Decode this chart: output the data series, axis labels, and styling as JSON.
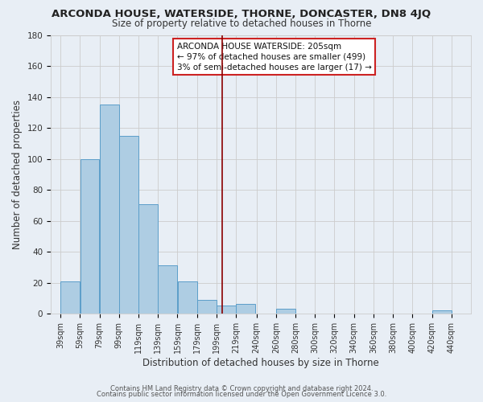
{
  "title": "ARCONDA HOUSE, WATERSIDE, THORNE, DONCASTER, DN8 4JQ",
  "subtitle": "Size of property relative to detached houses in Thorne",
  "xlabel": "Distribution of detached houses by size in Thorne",
  "ylabel": "Number of detached properties",
  "footer_lines": [
    "Contains HM Land Registry data © Crown copyright and database right 2024.",
    "Contains public sector information licensed under the Open Government Licence 3.0."
  ],
  "annotation_lines": [
    "ARCONDA HOUSE WATERSIDE: 205sqm",
    "← 97% of detached houses are smaller (499)",
    "3% of semi-detached houses are larger (17) →"
  ],
  "bar_left_edges": [
    39,
    59,
    79,
    99,
    119,
    139,
    159,
    179,
    199,
    219,
    240,
    260,
    280,
    300,
    320,
    340,
    360,
    380,
    400,
    420
  ],
  "bar_heights": [
    21,
    100,
    135,
    115,
    71,
    31,
    21,
    9,
    5,
    6,
    0,
    3,
    0,
    0,
    0,
    0,
    0,
    0,
    0,
    2
  ],
  "bar_color": "#aecde3",
  "bar_edge_color": "#5b9ec9",
  "vline_x": 205,
  "vline_color": "#8b0000",
  "tick_labels": [
    "39sqm",
    "59sqm",
    "79sqm",
    "99sqm",
    "119sqm",
    "139sqm",
    "159sqm",
    "179sqm",
    "199sqm",
    "219sqm",
    "240sqm",
    "260sqm",
    "280sqm",
    "300sqm",
    "320sqm",
    "340sqm",
    "360sqm",
    "380sqm",
    "400sqm",
    "420sqm",
    "440sqm"
  ],
  "tick_positions": [
    39,
    59,
    79,
    99,
    119,
    139,
    159,
    179,
    199,
    219,
    240,
    260,
    280,
    300,
    320,
    340,
    360,
    380,
    400,
    420,
    440
  ],
  "ylim": [
    0,
    180
  ],
  "xlim": [
    29,
    460
  ],
  "yticks": [
    0,
    20,
    40,
    60,
    80,
    100,
    120,
    140,
    160,
    180
  ],
  "grid_color": "#cccccc",
  "bg_color": "#e8eef5",
  "title_fontsize": 9.5,
  "subtitle_fontsize": 8.5,
  "xlabel_fontsize": 8.5,
  "ylabel_fontsize": 8.5,
  "tick_fontsize": 7.0,
  "ytick_fontsize": 7.5,
  "footer_fontsize": 6.0,
  "ann_fontsize": 7.5
}
